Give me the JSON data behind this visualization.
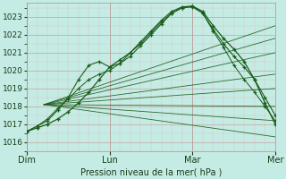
{
  "xlabel": "Pression niveau de la mer( hPa )",
  "bg_color": "#c5ece4",
  "plot_bg_color": "#c5ece4",
  "grid_major_color": "#c8a0a0",
  "grid_minor_color": "#dcc0c0",
  "line_color": "#1a5c1a",
  "ylim": [
    1015.5,
    1023.8
  ],
  "xlim": [
    0,
    72
  ],
  "yticks": [
    1016,
    1017,
    1018,
    1019,
    1020,
    1021,
    1022,
    1023
  ],
  "xtick_positions": [
    0,
    24,
    48,
    72
  ],
  "xtick_labels": [
    "Dim",
    "Lun",
    "Mar",
    "Mer"
  ],
  "figsize": [
    3.2,
    2.0
  ],
  "dpi": 100,
  "conv_x": 5,
  "conv_y": 1018.1,
  "fan_lines": [
    {
      "x2": 72,
      "y2": 1022.5
    },
    {
      "x2": 72,
      "y2": 1021.8
    },
    {
      "x2": 72,
      "y2": 1021.0
    },
    {
      "x2": 72,
      "y2": 1019.8
    },
    {
      "x2": 72,
      "y2": 1019.0
    },
    {
      "x2": 72,
      "y2": 1018.0
    },
    {
      "x2": 72,
      "y2": 1017.2
    },
    {
      "x2": 72,
      "y2": 1016.3
    }
  ],
  "main_line": {
    "x": [
      0,
      3,
      6,
      9,
      12,
      15,
      18,
      21,
      24,
      27,
      30,
      33,
      36,
      39,
      42,
      45,
      48,
      51,
      54,
      57,
      60,
      63,
      66,
      69,
      72
    ],
    "y": [
      1016.6,
      1016.8,
      1017.0,
      1017.3,
      1017.7,
      1018.2,
      1018.8,
      1019.5,
      1020.2,
      1020.6,
      1021.0,
      1021.6,
      1022.2,
      1022.8,
      1023.3,
      1023.55,
      1023.6,
      1023.3,
      1022.5,
      1021.8,
      1021.2,
      1020.5,
      1019.5,
      1018.2,
      1017.0
    ]
  },
  "bump_line": {
    "x": [
      0,
      3,
      6,
      9,
      12,
      15,
      18,
      21,
      24,
      27,
      30,
      33,
      36,
      39,
      42,
      45,
      48,
      51,
      54,
      57,
      60,
      63,
      66,
      69,
      72
    ],
    "y": [
      1016.6,
      1016.9,
      1017.2,
      1017.8,
      1018.5,
      1019.5,
      1020.3,
      1020.5,
      1020.2,
      1020.4,
      1020.8,
      1021.4,
      1022.0,
      1022.6,
      1023.2,
      1023.5,
      1023.55,
      1023.2,
      1022.3,
      1021.5,
      1020.8,
      1020.2,
      1019.5,
      1018.5,
      1017.5
    ]
  },
  "third_line": {
    "x": [
      0,
      3,
      6,
      9,
      12,
      15,
      18,
      21,
      24,
      27,
      30,
      33,
      36,
      39,
      42,
      45,
      48,
      51,
      54,
      57,
      60,
      63,
      66,
      69,
      72
    ],
    "y": [
      1016.6,
      1016.9,
      1017.3,
      1017.9,
      1018.4,
      1019.0,
      1019.5,
      1019.8,
      1020.0,
      1020.4,
      1021.0,
      1021.5,
      1022.1,
      1022.7,
      1023.2,
      1023.5,
      1023.6,
      1023.2,
      1022.2,
      1021.3,
      1020.3,
      1019.5,
      1018.8,
      1018.0,
      1017.2
    ]
  }
}
